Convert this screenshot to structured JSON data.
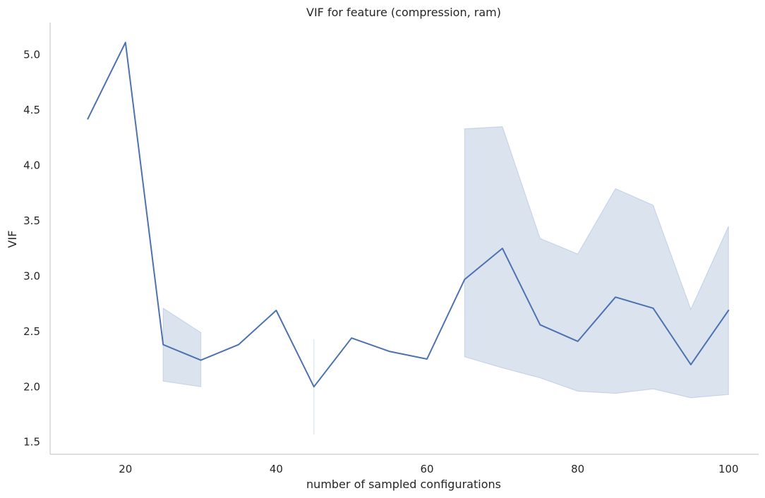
{
  "chart_data": {
    "type": "line",
    "title": "VIF for feature (compression, ram)",
    "xlabel": "number of sampled configurations",
    "ylabel": "VIF",
    "xlim": [
      10,
      104
    ],
    "ylim": [
      1.39,
      5.29
    ],
    "xticks": [
      20,
      40,
      60,
      80,
      100
    ],
    "xtick_labels": [
      "20",
      "40",
      "60",
      "80",
      "100"
    ],
    "yticks": [
      1.5,
      2.0,
      2.5,
      3.0,
      3.5,
      4.0,
      4.5,
      5.0
    ],
    "ytick_labels": [
      "1.5",
      "2.0",
      "2.5",
      "3.0",
      "3.5",
      "4.0",
      "4.5",
      "5.0"
    ],
    "grid": false,
    "legend": "none",
    "series": [
      {
        "x": [
          15,
          20,
          25,
          30,
          35,
          40,
          45,
          50,
          55,
          60,
          65,
          70,
          75,
          80,
          85,
          90,
          95,
          100
        ],
        "y": [
          4.42,
          5.11,
          2.38,
          2.24,
          2.38,
          2.69,
          2.0,
          2.44,
          2.32,
          2.25,
          2.97,
          3.25,
          2.56,
          2.41,
          2.81,
          2.71,
          2.2,
          2.69
        ],
        "color": "#4c72b0"
      }
    ],
    "confidence_band": {
      "color": "#4c72b0",
      "opacity": 0.2,
      "segments": [
        {
          "x": [
            25,
            30
          ],
          "lower": [
            2.05,
            2.0
          ],
          "upper": [
            2.71,
            2.49
          ]
        },
        {
          "x": [
            45,
            45
          ],
          "lower": [
            1.57,
            1.57
          ],
          "upper": [
            2.43,
            2.43
          ]
        },
        {
          "x": [
            65,
            70,
            75,
            80,
            85,
            90,
            95,
            100
          ],
          "lower": [
            2.27,
            2.17,
            2.08,
            1.96,
            1.94,
            1.98,
            1.9,
            1.93
          ],
          "upper": [
            4.33,
            4.35,
            3.34,
            3.2,
            3.79,
            3.64,
            2.7,
            3.45
          ]
        }
      ]
    }
  }
}
